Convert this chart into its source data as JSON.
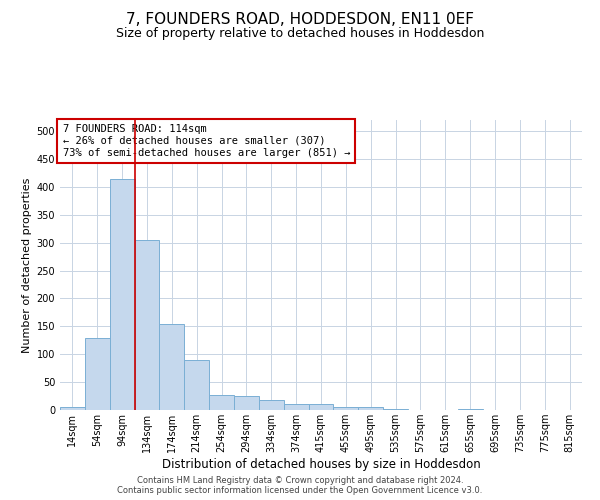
{
  "title": "7, FOUNDERS ROAD, HODDESDON, EN11 0EF",
  "subtitle": "Size of property relative to detached houses in Hoddesdon",
  "xlabel": "Distribution of detached houses by size in Hoddesdon",
  "ylabel": "Number of detached properties",
  "footer_line1": "Contains HM Land Registry data © Crown copyright and database right 2024.",
  "footer_line2": "Contains public sector information licensed under the Open Government Licence v3.0.",
  "bar_color": "#c5d8ed",
  "bar_edge_color": "#7aafd4",
  "grid_color": "#c8d4e3",
  "property_line_color": "#cc0000",
  "annotation_box_color": "#ffffff",
  "annotation_border_color": "#cc0000",
  "annotation_text_line1": "7 FOUNDERS ROAD: 114sqm",
  "annotation_text_line2": "← 26% of detached houses are smaller (307)",
  "annotation_text_line3": "73% of semi-detached houses are larger (851) →",
  "bin_labels": [
    "14sqm",
    "54sqm",
    "94sqm",
    "134sqm",
    "174sqm",
    "214sqm",
    "254sqm",
    "294sqm",
    "334sqm",
    "374sqm",
    "415sqm",
    "455sqm",
    "495sqm",
    "535sqm",
    "575sqm",
    "615sqm",
    "655sqm",
    "695sqm",
    "735sqm",
    "775sqm",
    "815sqm"
  ],
  "bar_heights": [
    5,
    130,
    415,
    305,
    155,
    90,
    27,
    25,
    18,
    11,
    11,
    5,
    5,
    2,
    0,
    0,
    1,
    0,
    0,
    0,
    0
  ],
  "ylim": [
    0,
    520
  ],
  "yticks": [
    0,
    50,
    100,
    150,
    200,
    250,
    300,
    350,
    400,
    450,
    500
  ],
  "background_color": "#ffffff",
  "title_fontsize": 11,
  "subtitle_fontsize": 9,
  "ylabel_fontsize": 8,
  "xlabel_fontsize": 8.5,
  "tick_fontsize": 7,
  "annotation_fontsize": 7.5,
  "footer_fontsize": 6
}
